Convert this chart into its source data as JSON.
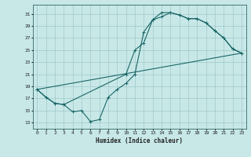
{
  "xlabel": "Humidex (Indice chaleur)",
  "background_color": "#c8e8e8",
  "grid_color": "#a0c8c8",
  "line_color": "#1a6666",
  "xlim": [
    -0.5,
    23.5
  ],
  "ylim": [
    12,
    32.5
  ],
  "xticks": [
    0,
    1,
    2,
    3,
    4,
    5,
    6,
    7,
    8,
    9,
    10,
    11,
    12,
    13,
    14,
    15,
    16,
    17,
    18,
    19,
    20,
    21,
    22,
    23
  ],
  "yticks": [
    13,
    15,
    17,
    19,
    21,
    23,
    25,
    27,
    29,
    31
  ],
  "line1_x": [
    0,
    1,
    2,
    3,
    4,
    5,
    6,
    7,
    8,
    9,
    10,
    11,
    12,
    13,
    14,
    15,
    16,
    17,
    18,
    19,
    20,
    21,
    22,
    23
  ],
  "line1_y": [
    18.5,
    17.2,
    16.2,
    16.0,
    14.8,
    15.0,
    13.2,
    13.5,
    17.2,
    18.5,
    19.5,
    21.0,
    28.0,
    30.0,
    30.5,
    31.2,
    30.8,
    30.2,
    30.2,
    29.5,
    28.2,
    27.0,
    25.2,
    24.5
  ],
  "line2_x": [
    0,
    1,
    2,
    3,
    10,
    11,
    12,
    13,
    14,
    15,
    16,
    17,
    18,
    19,
    20,
    21,
    22,
    23
  ],
  "line2_y": [
    18.5,
    17.2,
    16.2,
    16.0,
    21.0,
    25.0,
    26.2,
    30.0,
    31.2,
    31.2,
    30.8,
    30.2,
    30.2,
    29.5,
    28.2,
    27.0,
    25.2,
    24.5
  ],
  "line3_x": [
    0,
    23
  ],
  "line3_y": [
    18.5,
    24.5
  ]
}
